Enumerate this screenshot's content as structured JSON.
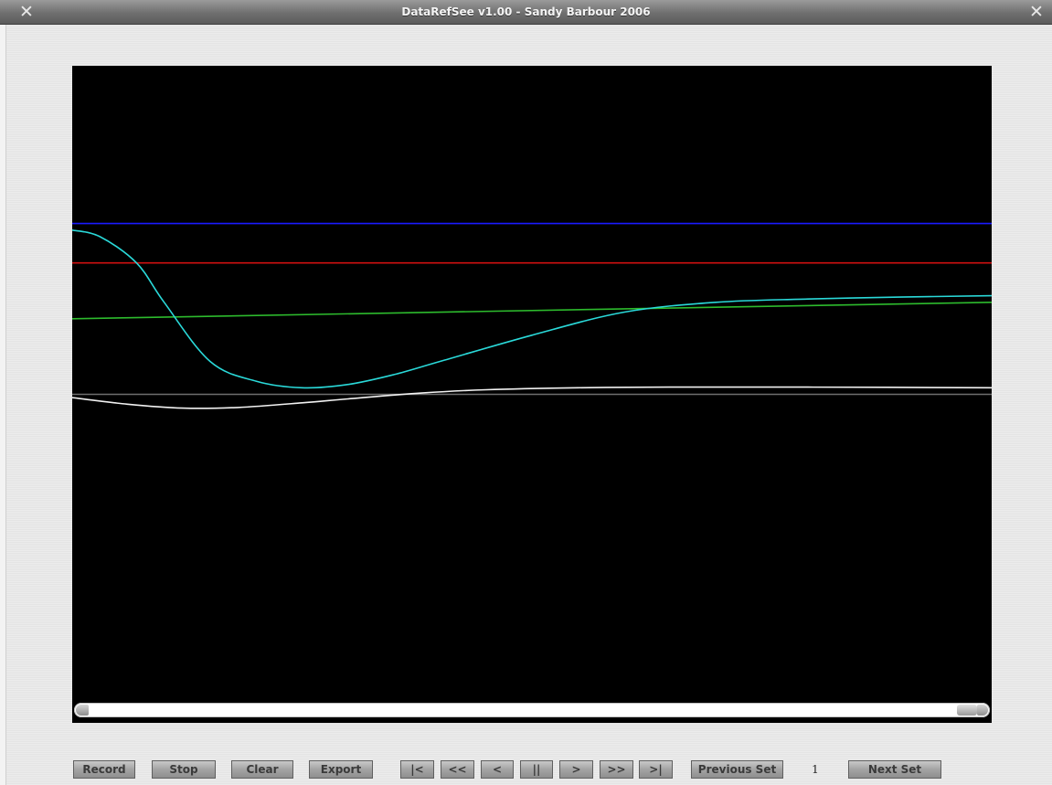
{
  "window": {
    "title": "DataRefSee v1.00 - Sandy Barbour 2006",
    "close_glyph": "✕"
  },
  "chart_data": {
    "type": "line",
    "background": "#000000",
    "grid": false,
    "series": [
      {
        "color": "#1a1aff",
        "x": [
          0,
          100
        ],
        "values": [
          0.76,
          0.76
        ]
      },
      {
        "color": "#d01010",
        "x": [
          0,
          100
        ],
        "values": [
          0.7,
          0.7
        ]
      },
      {
        "color": "#2dbb2d",
        "x": [
          0,
          100
        ],
        "values": [
          0.615,
          0.64
        ]
      },
      {
        "color": "#6e6e6e",
        "x": [
          0,
          100
        ],
        "values": [
          0.5,
          0.5
        ]
      },
      {
        "color": "#2ad9d9",
        "x": [
          0,
          3,
          7,
          10,
          15,
          20,
          25,
          30,
          35,
          40,
          50,
          60,
          70,
          80,
          90,
          100
        ],
        "values": [
          0.75,
          0.74,
          0.7,
          0.64,
          0.55,
          0.52,
          0.51,
          0.515,
          0.53,
          0.55,
          0.59,
          0.625,
          0.64,
          0.645,
          0.648,
          0.65
        ]
      },
      {
        "color": "#f2f2f2",
        "x": [
          0,
          6,
          12,
          18,
          25,
          30,
          38,
          45,
          55,
          65,
          80,
          100
        ],
        "values": [
          0.495,
          0.485,
          0.479,
          0.48,
          0.487,
          0.493,
          0.502,
          0.507,
          0.51,
          0.511,
          0.511,
          0.51
        ]
      }
    ],
    "xlim": [
      0,
      100
    ],
    "ylim": [
      0,
      1
    ]
  },
  "scrollbar": {
    "position": 1.0
  },
  "toolbar": {
    "record": "Record",
    "stop": "Stop",
    "clear": "Clear",
    "export": "Export",
    "first": "|<",
    "rewind": "<<",
    "back": "<",
    "pause": "||",
    "forward": ">",
    "fast_forward": ">>",
    "last": ">|",
    "previous_set": "Previous Set",
    "set_number": "1",
    "next_set": "Next Set"
  }
}
